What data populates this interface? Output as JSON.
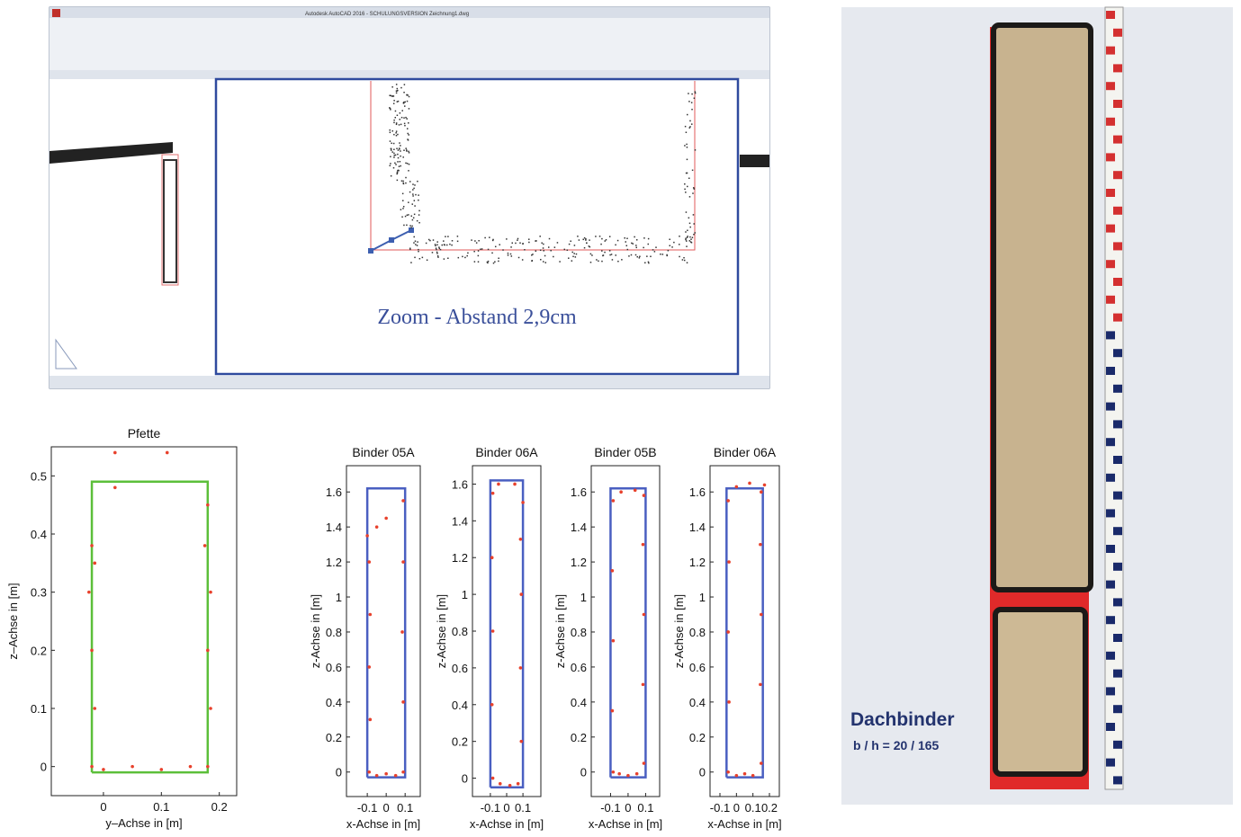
{
  "cad_screenshot": {
    "window_title": "Autodesk AutoCAD 2016 - SCHULUNGSVERSION   Zeichnung1.dwg",
    "annotation": "Zoom - Abstand 2,9cm"
  },
  "chart_data": [
    {
      "type": "scatter",
      "title": "Pfette",
      "x_label": "y–Achse in [m]",
      "y_label": "z–Achse in [m]",
      "xlim": [
        -0.09,
        0.23
      ],
      "ylim": [
        -0.05,
        0.55
      ],
      "xticks": [
        0,
        0.1,
        0.2
      ],
      "yticks": [
        0,
        0.1,
        0.2,
        0.3,
        0.4,
        0.5
      ],
      "series": [
        {
          "mode": "line",
          "color": "#5cbf3a",
          "x": [
            -0.02,
            0.18,
            0.18,
            -0.02,
            -0.02
          ],
          "values": [
            -0.01,
            -0.01,
            0.49,
            0.49,
            -0.01
          ]
        },
        {
          "mode": "markers",
          "color": "#e8412c",
          "x": [
            -0.02,
            -0.015,
            -0.02,
            -0.015,
            0.0,
            0.05,
            0.1,
            0.15,
            0.18,
            0.185,
            0.18,
            0.185,
            0.18,
            0.02,
            0.11,
            -0.02,
            0.02,
            -0.025,
            0.175
          ],
          "values": [
            0.0,
            0.1,
            0.2,
            0.35,
            -0.005,
            0.0,
            -0.005,
            0.0,
            0.0,
            0.1,
            0.2,
            0.3,
            0.45,
            0.54,
            0.54,
            0.38,
            0.48,
            0.3,
            0.38
          ]
        }
      ]
    },
    {
      "type": "scatter",
      "title": "Binder 05A",
      "x_label": "x-Achse in [m]",
      "y_label": "z-Achse in [m]",
      "xlim": [
        -0.21,
        0.18
      ],
      "ylim": [
        -0.14,
        1.75
      ],
      "xticks": [
        -0.1,
        0,
        0.1
      ],
      "yticks": [
        0,
        0.2,
        0.4,
        0.6,
        0.8,
        1,
        1.2,
        1.4,
        1.6
      ],
      "series": [
        {
          "mode": "line",
          "color": "#4a5fc1",
          "x": [
            -0.1,
            0.1,
            0.1,
            -0.1,
            -0.1
          ],
          "values": [
            -0.03,
            -0.03,
            1.62,
            1.62,
            -0.03
          ]
        },
        {
          "mode": "markers",
          "color": "#e8412c",
          "x": [
            -0.09,
            -0.085,
            -0.09,
            -0.085,
            -0.09,
            -0.05,
            0.0,
            0.05,
            0.09,
            0.09,
            0.085,
            0.09,
            0.09,
            -0.05,
            0.0,
            -0.1
          ],
          "values": [
            0.0,
            0.3,
            0.6,
            0.9,
            1.2,
            -0.02,
            -0.01,
            -0.02,
            0.0,
            0.4,
            0.8,
            1.2,
            1.55,
            1.4,
            1.45,
            1.35
          ]
        }
      ]
    },
    {
      "type": "scatter",
      "title": "Binder 06A",
      "x_label": "x-Achse in [m]",
      "y_label": "z-Achse in [m]",
      "xlim": [
        -0.21,
        0.21
      ],
      "ylim": [
        -0.1,
        1.7
      ],
      "xticks": [
        -0.1,
        0,
        0.1
      ],
      "yticks": [
        0,
        0.2,
        0.4,
        0.6,
        0.8,
        1,
        1.2,
        1.4,
        1.6
      ],
      "series": [
        {
          "mode": "line",
          "color": "#4a5fc1",
          "x": [
            -0.1,
            0.1,
            0.1,
            -0.1,
            -0.1
          ],
          "values": [
            -0.05,
            -0.05,
            1.62,
            1.62,
            -0.05
          ]
        },
        {
          "mode": "markers",
          "color": "#e8412c",
          "x": [
            -0.085,
            -0.09,
            -0.085,
            -0.09,
            -0.085,
            -0.04,
            0.02,
            0.07,
            0.09,
            0.085,
            0.09,
            0.085,
            0.1,
            -0.05,
            0.05
          ],
          "values": [
            0.0,
            0.4,
            0.8,
            1.2,
            1.55,
            -0.03,
            -0.04,
            -0.03,
            0.2,
            0.6,
            1.0,
            1.3,
            1.5,
            1.6,
            1.6
          ]
        }
      ]
    },
    {
      "type": "scatter",
      "title": "Binder 05B",
      "x_label": "x-Achse in [m]",
      "y_label": "z-Achse in [m]",
      "xlim": [
        -0.21,
        0.18
      ],
      "ylim": [
        -0.14,
        1.75
      ],
      "xticks": [
        -0.1,
        0,
        0.1
      ],
      "yticks": [
        0,
        0.2,
        0.4,
        0.6,
        0.8,
        1,
        1.2,
        1.4,
        1.6
      ],
      "series": [
        {
          "mode": "line",
          "color": "#4a5fc1",
          "x": [
            -0.1,
            0.1,
            0.1,
            -0.1,
            -0.1
          ],
          "values": [
            -0.03,
            -0.03,
            1.62,
            1.62,
            -0.03
          ]
        },
        {
          "mode": "markers",
          "color": "#e8412c",
          "x": [
            -0.085,
            -0.09,
            -0.085,
            -0.09,
            -0.085,
            -0.05,
            0.0,
            0.05,
            0.09,
            0.085,
            0.09,
            0.085,
            0.09,
            -0.04,
            0.04
          ],
          "values": [
            0.0,
            0.35,
            0.75,
            1.15,
            1.55,
            -0.01,
            -0.02,
            -0.01,
            0.05,
            0.5,
            0.9,
            1.3,
            1.58,
            1.6,
            1.61
          ]
        }
      ]
    },
    {
      "type": "scatter",
      "title": "Binder 06A",
      "x_label": "x-Achse in [m]",
      "y_label": "z-Achse in [m]",
      "xlim": [
        -0.16,
        0.26
      ],
      "ylim": [
        -0.14,
        1.75
      ],
      "xticks": [
        -0.1,
        0,
        0.1,
        0.2
      ],
      "yticks": [
        0,
        0.2,
        0.4,
        0.6,
        0.8,
        1,
        1.2,
        1.4,
        1.6
      ],
      "series": [
        {
          "mode": "line",
          "color": "#4a5fc1",
          "x": [
            -0.06,
            0.16,
            0.16,
            -0.06,
            -0.06
          ],
          "values": [
            -0.03,
            -0.03,
            1.62,
            1.62,
            -0.03
          ]
        },
        {
          "mode": "markers",
          "color": "#e8412c",
          "x": [
            -0.05,
            -0.045,
            -0.05,
            -0.045,
            -0.05,
            0.0,
            0.05,
            0.1,
            0.15,
            0.145,
            0.15,
            0.145,
            0.15,
            0.0,
            0.08,
            0.17
          ],
          "values": [
            0.0,
            0.4,
            0.8,
            1.2,
            1.55,
            -0.02,
            -0.01,
            -0.02,
            0.05,
            0.5,
            0.9,
            1.3,
            1.6,
            1.63,
            1.65,
            1.64
          ]
        }
      ]
    }
  ],
  "photo": {
    "label": "Dachbinder",
    "dimensions": "b / h = 20 / 165"
  }
}
